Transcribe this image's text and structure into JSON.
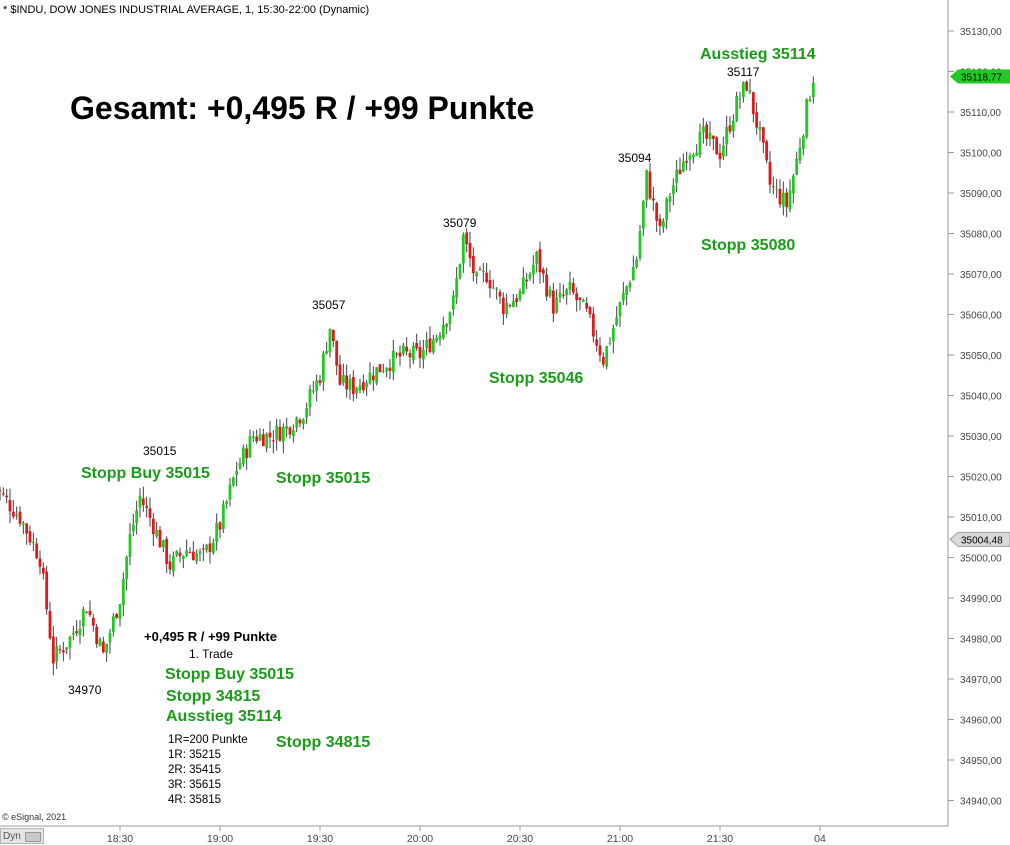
{
  "header": "* $INDU, DOW JONES INDUSTRIAL AVERAGE, 1, 15:30-22:00 (Dynamic)",
  "chart_data": {
    "type": "candlestick",
    "title": "* $INDU, DOW JONES INDUSTRIAL AVERAGE, 1, 15:30-22:00 (Dynamic)",
    "ylim": [
      34935,
      35140
    ],
    "y_ticks": [
      "35130,00",
      "35120,00",
      "35110,00",
      "35100,00",
      "35090,00",
      "35080,00",
      "35070,00",
      "35060,00",
      "35050,00",
      "35040,00",
      "35030,00",
      "35020,00",
      "35010,00",
      "35000,00",
      "34990,00",
      "34980,00",
      "34970,00",
      "34960,00",
      "34950,00",
      "34940,00"
    ],
    "x_ticks": [
      "18:30",
      "19:00",
      "19:30",
      "20:00",
      "20:30",
      "21:00",
      "21:30",
      "04"
    ],
    "last_price_label": "35118,77",
    "ref_price_label": "35004,48",
    "last_price": 35118.77,
    "ref_price": 35004.48,
    "swing_labels": [
      "34970",
      "35015",
      "35057",
      "35079",
      "35094",
      "35117"
    ],
    "close_path": [
      [
        "17:52",
        35018
      ],
      [
        "18:00",
        35010
      ],
      [
        "18:06",
        35000
      ],
      [
        "18:10",
        34975
      ],
      [
        "18:15",
        34980
      ],
      [
        "18:20",
        34988
      ],
      [
        "18:25",
        34976
      ],
      [
        "18:30",
        34990
      ],
      [
        "18:33",
        35005
      ],
      [
        "18:36",
        35015
      ],
      [
        "18:40",
        35008
      ],
      [
        "18:45",
        34998
      ],
      [
        "18:50",
        35002
      ],
      [
        "18:55",
        35000
      ],
      [
        "19:00",
        35008
      ],
      [
        "19:05",
        35022
      ],
      [
        "19:10",
        35030
      ],
      [
        "19:15",
        35030
      ],
      [
        "19:20",
        35032
      ],
      [
        "19:25",
        35036
      ],
      [
        "19:30",
        35045
      ],
      [
        "19:33",
        35057
      ],
      [
        "19:36",
        35043
      ],
      [
        "19:40",
        35042
      ],
      [
        "19:45",
        35045
      ],
      [
        "19:50",
        35048
      ],
      [
        "19:55",
        35050
      ],
      [
        "20:00",
        35050
      ],
      [
        "20:05",
        35055
      ],
      [
        "20:10",
        35063
      ],
      [
        "20:13",
        35079
      ],
      [
        "20:17",
        35068
      ],
      [
        "20:20",
        35070
      ],
      [
        "20:25",
        35062
      ],
      [
        "20:30",
        35065
      ],
      [
        "20:35",
        35074
      ],
      [
        "20:40",
        35062
      ],
      [
        "20:45",
        35066
      ],
      [
        "20:50",
        35060
      ],
      [
        "20:55",
        35049
      ],
      [
        "21:00",
        35062
      ],
      [
        "21:05",
        35074
      ],
      [
        "21:08",
        35094
      ],
      [
        "21:12",
        35080
      ],
      [
        "21:15",
        35090
      ],
      [
        "21:20",
        35100
      ],
      [
        "21:25",
        35104
      ],
      [
        "21:30",
        35100
      ],
      [
        "21:35",
        35112
      ],
      [
        "21:38",
        35117
      ],
      [
        "21:42",
        35104
      ],
      [
        "21:45",
        35092
      ],
      [
        "21:50",
        35087
      ],
      [
        "21:53",
        35098
      ],
      [
        "21:57",
        35115
      ],
      [
        "21:58",
        35118.77
      ]
    ]
  },
  "annotations": {
    "total": "Gesamt: +0,495 R / +99 Punkte",
    "exit_top": "Ausstieg 35114",
    "stop_35080": "Stopp 35080",
    "stop_35046": "Stopp 35046",
    "stop_buy_left": "Stopp Buy 35015",
    "stop_35015": "Stopp 35015",
    "stop_34815_right": "Stopp 34815",
    "trade_result": "+0,495 R / +99 Punkte",
    "trade_name": "1. Trade",
    "trade_stop_buy": "Stopp Buy 35015",
    "trade_stop": "Stopp 34815",
    "trade_exit": "Ausstieg 35114",
    "risk_lines": [
      "1R=200 Punkte",
      "1R: 35215",
      "2R: 35415",
      "3R: 35615",
      "4R: 35815"
    ]
  },
  "footer": {
    "copyright": "© eSignal, 2021",
    "dyn_label": "Dyn"
  },
  "colors": {
    "up": "#22c922",
    "down": "#dd1a1a",
    "wick": "#404040",
    "label_green": "#1a9c1a",
    "last_price_bg": "#22c922"
  }
}
